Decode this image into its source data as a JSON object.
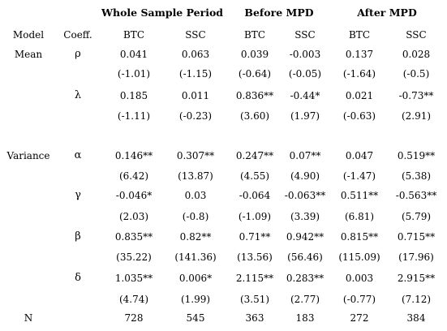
{
  "table": {
    "group_headers": [
      "Whole Sample Period",
      "Before MPD",
      "After MPD"
    ],
    "col_headers": [
      "Model",
      "Coeff.",
      "BTC",
      "SSC",
      "BTC",
      "SSC",
      "BTC",
      "SSC"
    ],
    "rows": [
      [
        "Mean",
        "ρ",
        "0.041",
        "0.063",
        "0.039",
        "-0.003",
        "0.137",
        "0.028"
      ],
      [
        "",
        "",
        "(-1.01)",
        "(-1.15)",
        "(-0.64)",
        "(-0.05)",
        "(-1.64)",
        "(-0.5)"
      ],
      [
        "",
        "λ",
        "0.185",
        "0.011",
        "0.836**",
        "-0.44*",
        "0.021",
        "-0.73**"
      ],
      [
        "",
        "",
        "(-1.11)",
        "(-0.23)",
        "(3.60)",
        "(1.97)",
        "(-0.63)",
        "(2.91)"
      ],
      [
        "",
        "",
        "",
        "",
        "",
        "",
        "",
        ""
      ],
      [
        "Variance",
        "α",
        "0.146**",
        "0.307**",
        "0.247**",
        "0.07**",
        "0.047",
        "0.519**"
      ],
      [
        "",
        "",
        "(6.42)",
        "(13.87)",
        "(4.55)",
        "(4.90)",
        "(-1.47)",
        "(5.38)"
      ],
      [
        "",
        "γ",
        "-0.046*",
        "0.03",
        "-0.064",
        "-0.063**",
        "0.511**",
        "-0.563**"
      ],
      [
        "",
        "",
        "(2.03)",
        "(-0.8)",
        "(-1.09)",
        "(3.39)",
        "(6.81)",
        "(5.79)"
      ],
      [
        "",
        "β",
        "0.835**",
        "0.82**",
        "0.71**",
        "0.942**",
        "0.815**",
        "0.715**"
      ],
      [
        "",
        "",
        "(35.22)",
        "(141.36)",
        "(13.56)",
        "(56.46)",
        "(115.09)",
        "(17.96)"
      ],
      [
        "",
        "δ",
        "1.035**",
        "0.006*",
        "2.115**",
        "0.283**",
        "0.003",
        "2.915**"
      ],
      [
        "",
        "",
        "(4.74)",
        "(1.99)",
        "(3.51)",
        "(2.77)",
        "(-0.77)",
        "(7.12)"
      ],
      [
        "N",
        "",
        "728",
        "545",
        "363",
        "183",
        "272",
        "384"
      ]
    ]
  }
}
